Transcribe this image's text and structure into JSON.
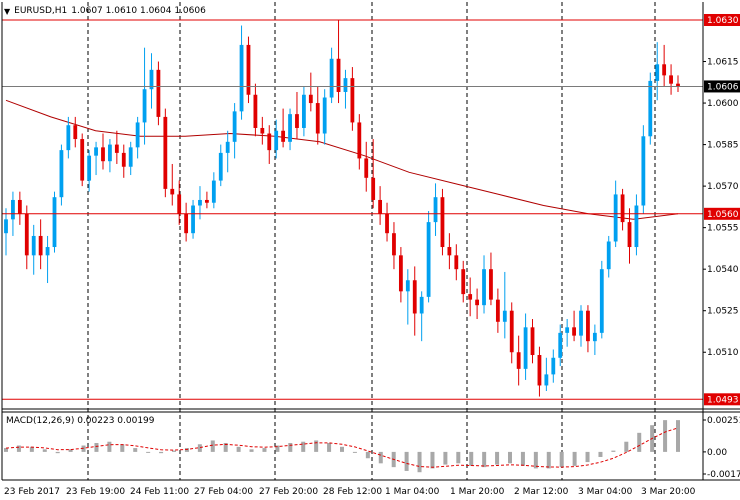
{
  "header": {
    "symbol": "EURUSD,H1",
    "ohlc": "1.0607 1.0610 1.0604 1.0606"
  },
  "macd_header": "MACD(12,26,9) 0.00223 0.00199",
  "price_scale": {
    "ticks": [
      "1.0615",
      "1.0600",
      "1.0585",
      "1.0570",
      "1.0555",
      "1.0540",
      "1.0525",
      "1.0510"
    ],
    "markers": [
      {
        "value": "1.0630",
        "color": "#e00000"
      },
      {
        "value": "1.0606",
        "color": "#000000"
      },
      {
        "value": "1.0560",
        "color": "#e00000"
      },
      {
        "value": "1.0493",
        "color": "#e00000"
      }
    ]
  },
  "macd_scale": {
    "ticks": [
      "0.00251",
      "0.00",
      "-0.00174"
    ]
  },
  "time_axis": {
    "labels": [
      "23 Feb 2017",
      "23 Feb 19:00",
      "24 Feb 11:00",
      "27 Feb 04:00",
      "27 Feb 20:00",
      "28 Feb 12:00",
      "1 Mar 04:00",
      "1 Mar 20:00",
      "2 Mar 12:00",
      "3 Mar 04:00",
      "3 Mar 20:00"
    ]
  },
  "colors": {
    "bull": "#00a0f0",
    "bear": "#e00000",
    "hline_red": "#e00000",
    "hline_current": "#7a7a7a",
    "ma": "#b00000",
    "macd_hist": "#a8a8a8",
    "macd_signal": "#e00000"
  },
  "chart_data": {
    "type": "candlestick",
    "symbol": "EURUSD",
    "timeframe": "H1",
    "ylim": [
      1.04895,
      1.06365
    ],
    "horizontal_levels": [
      1.063,
      1.0606,
      1.056,
      1.0493
    ],
    "candles_approx": [
      [
        1.0553,
        1.0562,
        1.0545,
        1.0558
      ],
      [
        1.0558,
        1.0568,
        1.0552,
        1.0565
      ],
      [
        1.0565,
        1.0568,
        1.0556,
        1.056
      ],
      [
        1.056,
        1.0563,
        1.054,
        1.0545
      ],
      [
        1.0545,
        1.0556,
        1.0538,
        1.0552
      ],
      [
        1.0552,
        1.0558,
        1.054,
        1.0545
      ],
      [
        1.0545,
        1.0552,
        1.0535,
        1.0548
      ],
      [
        1.0548,
        1.0568,
        1.0546,
        1.0566
      ],
      [
        1.0566,
        1.0585,
        1.0563,
        1.0583
      ],
      [
        1.0583,
        1.0595,
        1.058,
        1.0592
      ],
      [
        1.0592,
        1.0595,
        1.0584,
        1.0587
      ],
      [
        1.0587,
        1.0589,
        1.057,
        1.0572
      ],
      [
        1.0572,
        1.0583,
        1.0568,
        1.0581
      ],
      [
        1.0581,
        1.0586,
        1.0574,
        1.0584
      ],
      [
        1.0584,
        1.0589,
        1.0576,
        1.0579
      ],
      [
        1.0579,
        1.0587,
        1.0575,
        1.0585
      ],
      [
        1.0585,
        1.059,
        1.0578,
        1.0582
      ],
      [
        1.0582,
        1.0585,
        1.0573,
        1.0577
      ],
      [
        1.0577,
        1.0586,
        1.0574,
        1.0584
      ],
      [
        1.0584,
        1.0595,
        1.058,
        1.0593
      ],
      [
        1.0593,
        1.062,
        1.0585,
        1.0605
      ],
      [
        1.0605,
        1.0618,
        1.0598,
        1.0612
      ],
      [
        1.0612,
        1.0615,
        1.0592,
        1.0595
      ],
      [
        1.0595,
        1.0598,
        1.0566,
        1.0569
      ],
      [
        1.0569,
        1.0578,
        1.0563,
        1.0567
      ],
      [
        1.0567,
        1.0572,
        1.0556,
        1.056
      ],
      [
        1.056,
        1.0564,
        1.055,
        1.0553
      ],
      [
        1.0553,
        1.0565,
        1.0551,
        1.0563
      ],
      [
        1.0563,
        1.057,
        1.0558,
        1.0565
      ],
      [
        1.0565,
        1.0568,
        1.0562,
        1.0564
      ],
      [
        1.0564,
        1.0575,
        1.0562,
        1.0572
      ],
      [
        1.0572,
        1.0585,
        1.057,
        1.0582
      ],
      [
        1.0582,
        1.059,
        1.0575,
        1.0586
      ],
      [
        1.0586,
        1.06,
        1.058,
        1.0597
      ],
      [
        1.0597,
        1.0628,
        1.0594,
        1.0621
      ],
      [
        1.0621,
        1.0624,
        1.06,
        1.0603
      ],
      [
        1.0603,
        1.0607,
        1.0588,
        1.0591
      ],
      [
        1.0591,
        1.0595,
        1.0585,
        1.0589
      ],
      [
        1.0589,
        1.0592,
        1.0578,
        1.0583
      ],
      [
        1.0583,
        1.0594,
        1.058,
        1.059
      ],
      [
        1.059,
        1.0598,
        1.0584,
        1.0586
      ],
      [
        1.0586,
        1.0598,
        1.0583,
        1.0596
      ],
      [
        1.0596,
        1.0604,
        1.0587,
        1.0591
      ],
      [
        1.0591,
        1.0606,
        1.0588,
        1.0603
      ],
      [
        1.0603,
        1.0611,
        1.0597,
        1.06
      ],
      [
        1.06,
        1.0606,
        1.0585,
        1.0589
      ],
      [
        1.0589,
        1.0605,
        1.0585,
        1.0602
      ],
      [
        1.0602,
        1.062,
        1.06,
        1.0616
      ],
      [
        1.0616,
        1.063,
        1.06,
        1.0604
      ],
      [
        1.0604,
        1.0612,
        1.0598,
        1.0609
      ],
      [
        1.0609,
        1.0613,
        1.059,
        1.0593
      ],
      [
        1.0593,
        1.0596,
        1.0576,
        1.058
      ],
      [
        1.058,
        1.0586,
        1.0568,
        1.0573
      ],
      [
        1.0573,
        1.0587,
        1.0562,
        1.0565
      ],
      [
        1.0565,
        1.057,
        1.0556,
        1.056
      ],
      [
        1.056,
        1.0564,
        1.055,
        1.0553
      ],
      [
        1.0553,
        1.0557,
        1.054,
        1.0545
      ],
      [
        1.0545,
        1.0548,
        1.0528,
        1.0532
      ],
      [
        1.0532,
        1.054,
        1.052,
        1.0536
      ],
      [
        1.0536,
        1.0541,
        1.0516,
        1.0524
      ],
      [
        1.0524,
        1.0532,
        1.0514,
        1.053
      ],
      [
        1.053,
        1.0561,
        1.0528,
        1.0557
      ],
      [
        1.0557,
        1.0571,
        1.0552,
        1.0566
      ],
      [
        1.0566,
        1.0569,
        1.0545,
        1.0548
      ],
      [
        1.0548,
        1.0553,
        1.054,
        1.0545
      ],
      [
        1.0545,
        1.0549,
        1.0536,
        1.054
      ],
      [
        1.054,
        1.0543,
        1.0528,
        1.0531
      ],
      [
        1.0531,
        1.0537,
        1.0523,
        1.0529
      ],
      [
        1.0529,
        1.0533,
        1.0522,
        1.0527
      ],
      [
        1.0527,
        1.0545,
        1.0524,
        1.054
      ],
      [
        1.054,
        1.0546,
        1.0527,
        1.0529
      ],
      [
        1.0529,
        1.0533,
        1.0517,
        1.0521
      ],
      [
        1.0521,
        1.0539,
        1.0515,
        1.0525
      ],
      [
        1.0525,
        1.0528,
        1.0506,
        1.051
      ],
      [
        1.051,
        1.0516,
        1.0498,
        1.0504
      ],
      [
        1.0504,
        1.0524,
        1.05,
        1.0519
      ],
      [
        1.0519,
        1.0522,
        1.0506,
        1.0509
      ],
      [
        1.0509,
        1.0512,
        1.0494,
        1.0498
      ],
      [
        1.0498,
        1.0508,
        1.0496,
        1.0502
      ],
      [
        1.0502,
        1.0511,
        1.0499,
        1.0508
      ],
      [
        1.0508,
        1.052,
        1.0505,
        1.0517
      ],
      [
        1.0517,
        1.0522,
        1.0512,
        1.0519
      ],
      [
        1.0519,
        1.0525,
        1.0514,
        1.0516
      ],
      [
        1.0516,
        1.0527,
        1.0512,
        1.0525
      ],
      [
        1.0525,
        1.0527,
        1.051,
        1.0514
      ],
      [
        1.0514,
        1.052,
        1.0509,
        1.0517
      ],
      [
        1.0517,
        1.0543,
        1.0515,
        1.054
      ],
      [
        1.054,
        1.0552,
        1.0537,
        1.055
      ],
      [
        1.055,
        1.0572,
        1.0548,
        1.0567
      ],
      [
        1.0567,
        1.0569,
        1.0554,
        1.0557
      ],
      [
        1.0557,
        1.0562,
        1.0542,
        1.0548
      ],
      [
        1.0548,
        1.0567,
        1.0545,
        1.0563
      ],
      [
        1.0563,
        1.0592,
        1.056,
        1.0588
      ],
      [
        1.0588,
        1.0611,
        1.0585,
        1.0608
      ],
      [
        1.0608,
        1.0622,
        1.0601,
        1.0614
      ],
      [
        1.0614,
        1.0621,
        1.0606,
        1.061
      ],
      [
        1.061,
        1.0614,
        1.0603,
        1.0607
      ],
      [
        1.0607,
        1.061,
        1.0604,
        1.0606
      ]
    ],
    "moving_average_approx": [
      1.0601,
      1.0595,
      1.059,
      1.0588,
      1.0588,
      1.0589,
      1.0588,
      1.0586,
      1.0581,
      1.0575,
      1.0571,
      1.0567,
      1.0563,
      1.056,
      1.0558,
      1.056
    ],
    "macd_hist_approx": [
      0.0003,
      0.0005,
      0.0004,
      0.0002,
      -0.0001,
      0.0002,
      0.0005,
      0.0007,
      0.0008,
      0.0006,
      0.0003,
      0.0,
      -0.0001,
      0.0001,
      0.0003,
      0.0006,
      0.0009,
      0.0007,
      0.0004,
      0.0002,
      0.0003,
      0.0005,
      0.0007,
      0.0008,
      0.0009,
      0.0007,
      0.0004,
      0.0,
      -0.0005,
      -0.0009,
      -0.0012,
      -0.0015,
      -0.0016,
      -0.0013,
      -0.001,
      -0.0009,
      -0.0011,
      -0.0012,
      -0.001,
      -0.0009,
      -0.0011,
      -0.0013,
      -0.0013,
      -0.0012,
      -0.0011,
      -0.0008,
      -0.0004,
      0.0001,
      0.0008,
      0.0015,
      0.0021,
      0.0025,
      0.0025
    ],
    "macd_ylim": [
      -0.00174,
      0.00251
    ]
  }
}
